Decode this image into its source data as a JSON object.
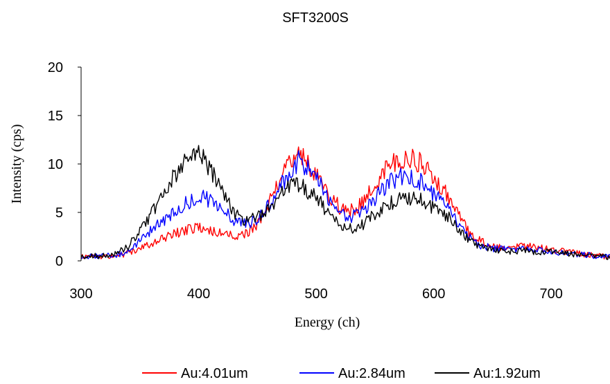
{
  "chart_data": {
    "type": "line",
    "title": "SFT3200S",
    "xlabel": "Energy (ch)",
    "ylabel": "Intensity (cps)",
    "xlim": [
      300,
      750
    ],
    "ylim": [
      0,
      20
    ],
    "xticks": [
      300,
      400,
      500,
      600,
      700
    ],
    "yticks": [
      0,
      5,
      10,
      15,
      20
    ],
    "grid": false,
    "legend_position": "bottom",
    "series": [
      {
        "name": "Au:4.01um",
        "color": "#ff0000",
        "x": [
          300,
          320,
          330,
          340,
          350,
          360,
          370,
          380,
          390,
          400,
          410,
          420,
          430,
          440,
          450,
          460,
          470,
          480,
          485,
          490,
          500,
          510,
          520,
          530,
          540,
          550,
          560,
          570,
          580,
          590,
          600,
          610,
          620,
          630,
          640,
          650,
          660,
          680,
          700,
          720,
          740,
          750
        ],
        "y": [
          0.5,
          0.5,
          0.5,
          0.8,
          1.2,
          1.8,
          2.3,
          2.8,
          3.2,
          3.4,
          3.1,
          2.8,
          2.6,
          2.8,
          3.8,
          6.0,
          8.5,
          10.5,
          11.0,
          10.5,
          9.0,
          7.0,
          5.5,
          5.2,
          6.0,
          7.8,
          9.5,
          10.5,
          10.5,
          10.0,
          8.5,
          7.0,
          5.0,
          3.0,
          2.0,
          1.5,
          1.3,
          1.5,
          1.2,
          0.8,
          0.5,
          0.4
        ]
      },
      {
        "name": "Au:2.84um",
        "color": "#0000ff",
        "x": [
          300,
          320,
          330,
          340,
          350,
          360,
          370,
          380,
          390,
          400,
          410,
          420,
          430,
          440,
          450,
          460,
          470,
          480,
          485,
          490,
          500,
          510,
          520,
          530,
          540,
          550,
          560,
          570,
          580,
          590,
          600,
          610,
          620,
          630,
          640,
          650,
          660,
          680,
          700,
          720,
          740,
          750
        ],
        "y": [
          0.5,
          0.5,
          0.6,
          1.0,
          2.0,
          3.2,
          4.2,
          5.0,
          6.0,
          6.8,
          6.2,
          5.2,
          4.2,
          3.8,
          4.2,
          5.8,
          7.8,
          9.5,
          10.5,
          9.8,
          8.5,
          6.5,
          4.8,
          4.5,
          5.2,
          6.5,
          7.8,
          8.8,
          8.8,
          8.0,
          7.0,
          6.0,
          4.0,
          2.5,
          1.6,
          1.3,
          1.2,
          1.2,
          1.0,
          0.7,
          0.5,
          0.4
        ]
      },
      {
        "name": "Au:1.92um",
        "color": "#000000",
        "x": [
          300,
          320,
          330,
          340,
          350,
          360,
          370,
          380,
          390,
          400,
          410,
          420,
          430,
          440,
          450,
          460,
          470,
          480,
          485,
          490,
          500,
          510,
          520,
          530,
          540,
          550,
          560,
          570,
          580,
          590,
          600,
          610,
          620,
          630,
          640,
          650,
          660,
          680,
          700,
          720,
          740,
          750
        ],
        "y": [
          0.5,
          0.5,
          0.7,
          1.5,
          3.0,
          5.0,
          7.0,
          9.0,
          10.5,
          11.0,
          9.5,
          7.0,
          5.0,
          4.2,
          4.5,
          5.5,
          7.0,
          7.8,
          8.0,
          7.6,
          6.5,
          5.0,
          3.6,
          3.3,
          3.8,
          4.8,
          5.8,
          6.3,
          6.5,
          6.2,
          5.5,
          4.8,
          3.5,
          2.2,
          1.4,
          1.1,
          1.0,
          1.0,
          0.9,
          0.7,
          0.5,
          0.4
        ]
      }
    ]
  }
}
